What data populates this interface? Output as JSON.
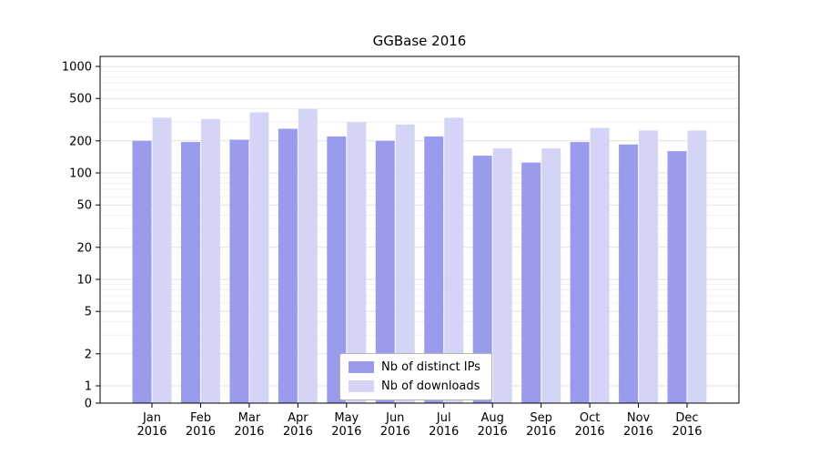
{
  "chart_data": {
    "type": "bar",
    "title": "GGBase 2016",
    "categories": [
      "Jan 2016",
      "Feb 2016",
      "Mar 2016",
      "Apr 2016",
      "May 2016",
      "Jun 2016",
      "Jul 2016",
      "Aug 2016",
      "Sep 2016",
      "Oct 2016",
      "Nov 2016",
      "Dec 2016"
    ],
    "series": [
      {
        "name": "Nb of distinct IPs",
        "color": "#9b9bee",
        "values": [
          200,
          195,
          205,
          260,
          220,
          200,
          220,
          145,
          125,
          195,
          185,
          160
        ]
      },
      {
        "name": "Nb of downloads",
        "color": "#d4d4f7",
        "values": [
          330,
          320,
          370,
          400,
          300,
          285,
          330,
          170,
          170,
          265,
          250,
          250
        ]
      }
    ],
    "yscale": "symlog",
    "yticks": [
      0,
      1,
      2,
      5,
      10,
      20,
      50,
      100,
      200,
      500,
      1000
    ],
    "ylim": [
      0,
      1250
    ],
    "grid": true,
    "legend_position": "lower center",
    "xlabel": "",
    "ylabel": ""
  }
}
